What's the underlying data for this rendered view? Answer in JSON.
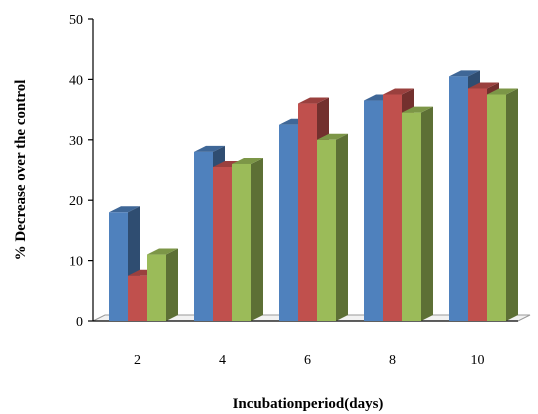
{
  "chart_data": {
    "type": "bar",
    "title": "",
    "xlabel": "Incubationperiod(days)",
    "ylabel": "% Decrease over the control",
    "categories": [
      "2",
      "4",
      "6",
      "8",
      "10"
    ],
    "ylim": [
      0,
      50
    ],
    "yticks": [
      "0",
      "10",
      "20",
      "30",
      "40",
      "50"
    ],
    "grid": false,
    "legend": "none",
    "series": [
      {
        "values": [
          18,
          28,
          32.5,
          36.5,
          40.5
        ],
        "color": "#4F81BD"
      },
      {
        "values": [
          7.5,
          25.5,
          36,
          37.5,
          38.5
        ],
        "color": "#C0504D"
      },
      {
        "values": [
          11,
          26,
          30,
          34.5,
          37.5
        ],
        "color": "#9BBB59"
      }
    ]
  }
}
